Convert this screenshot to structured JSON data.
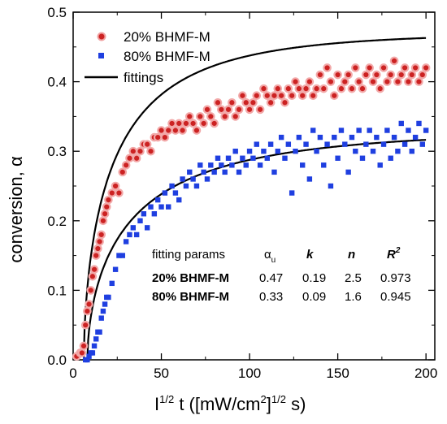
{
  "chart_data": {
    "type": "scatter",
    "xlabel": "I",
    "xlabel_sup": "1/2",
    "xlabel_rest": " t ([mW/cm",
    "xlabel_sup2": "2",
    "xlabel_tail": "]",
    "xlabel_sup3": "1/2",
    "xlabel_end": " s)",
    "ylabel": "conversion, α",
    "xlim": [
      0,
      205
    ],
    "ylim": [
      0,
      0.5
    ],
    "xticks": [
      "0",
      "50",
      "100",
      "150",
      "200"
    ],
    "yticks": [
      "0.0",
      "0.1",
      "0.2",
      "0.3",
      "0.4",
      "0.5"
    ],
    "legend": [
      {
        "label": "20% BHMF-M",
        "color": "#cc2222",
        "marker": "circle"
      },
      {
        "label": "80% BHMF-M",
        "color": "#1f3fe0",
        "marker": "square"
      },
      {
        "label": "fittings",
        "color": "#000000",
        "marker": "line"
      }
    ],
    "series": [
      {
        "name": "20% BHMF-M",
        "color": "#cc2222",
        "marker": "circle",
        "x": [
          2,
          4,
          5,
          6,
          7,
          8,
          9,
          10,
          11,
          12,
          13,
          14,
          15,
          16,
          17,
          18,
          19,
          20,
          22,
          24,
          26,
          28,
          30,
          32,
          34,
          36,
          38,
          40,
          42,
          44,
          46,
          48,
          50,
          52,
          54,
          56,
          58,
          60,
          62,
          64,
          66,
          68,
          70,
          72,
          74,
          76,
          78,
          80,
          82,
          84,
          86,
          88,
          90,
          92,
          94,
          96,
          98,
          100,
          102,
          104,
          106,
          108,
          110,
          112,
          114,
          116,
          118,
          120,
          122,
          124,
          126,
          128,
          130,
          132,
          134,
          136,
          138,
          140,
          142,
          144,
          146,
          148,
          150,
          152,
          154,
          156,
          158,
          160,
          162,
          164,
          166,
          168,
          170,
          172,
          174,
          176,
          178,
          180,
          182,
          184,
          186,
          188,
          190,
          192,
          194,
          196,
          198,
          200
        ],
        "y": [
          0.005,
          0.01,
          0.01,
          0.02,
          0.05,
          0.07,
          0.08,
          0.1,
          0.12,
          0.13,
          0.15,
          0.16,
          0.17,
          0.18,
          0.2,
          0.21,
          0.22,
          0.23,
          0.24,
          0.25,
          0.24,
          0.27,
          0.28,
          0.29,
          0.3,
          0.29,
          0.3,
          0.31,
          0.31,
          0.3,
          0.32,
          0.32,
          0.33,
          0.32,
          0.33,
          0.34,
          0.33,
          0.34,
          0.33,
          0.34,
          0.35,
          0.34,
          0.33,
          0.35,
          0.34,
          0.36,
          0.35,
          0.34,
          0.37,
          0.36,
          0.35,
          0.36,
          0.37,
          0.35,
          0.36,
          0.38,
          0.37,
          0.36,
          0.37,
          0.38,
          0.36,
          0.39,
          0.38,
          0.37,
          0.38,
          0.39,
          0.38,
          0.37,
          0.39,
          0.38,
          0.4,
          0.39,
          0.38,
          0.39,
          0.4,
          0.38,
          0.39,
          0.41,
          0.39,
          0.42,
          0.4,
          0.38,
          0.41,
          0.39,
          0.4,
          0.41,
          0.39,
          0.42,
          0.4,
          0.39,
          0.41,
          0.42,
          0.4,
          0.41,
          0.39,
          0.42,
          0.4,
          0.41,
          0.43,
          0.4,
          0.41,
          0.42,
          0.4,
          0.41,
          0.42,
          0.4,
          0.41,
          0.42
        ]
      },
      {
        "name": "80% BHMF-M",
        "color": "#1f3fe0",
        "marker": "square",
        "x": [
          7,
          8,
          9,
          10,
          11,
          12,
          13,
          14,
          15,
          16,
          17,
          18,
          19,
          20,
          22,
          24,
          26,
          28,
          30,
          32,
          34,
          36,
          38,
          40,
          42,
          44,
          46,
          48,
          50,
          52,
          54,
          56,
          58,
          60,
          62,
          64,
          66,
          68,
          70,
          72,
          74,
          76,
          78,
          80,
          82,
          84,
          86,
          88,
          90,
          92,
          94,
          96,
          98,
          100,
          102,
          104,
          106,
          108,
          110,
          112,
          114,
          116,
          118,
          120,
          122,
          124,
          126,
          128,
          130,
          132,
          134,
          136,
          138,
          140,
          142,
          144,
          146,
          148,
          150,
          152,
          154,
          156,
          158,
          160,
          162,
          164,
          166,
          168,
          170,
          172,
          174,
          176,
          178,
          180,
          182,
          184,
          186,
          188,
          190,
          192,
          194,
          196,
          198,
          200
        ],
        "y": [
          0.0,
          0.0,
          0.005,
          0.01,
          0.01,
          0.02,
          0.03,
          0.04,
          0.04,
          0.06,
          0.07,
          0.08,
          0.09,
          0.09,
          0.11,
          0.13,
          0.15,
          0.15,
          0.17,
          0.18,
          0.19,
          0.18,
          0.2,
          0.21,
          0.19,
          0.22,
          0.21,
          0.23,
          0.22,
          0.24,
          0.22,
          0.25,
          0.24,
          0.23,
          0.26,
          0.25,
          0.27,
          0.26,
          0.25,
          0.28,
          0.27,
          0.26,
          0.28,
          0.27,
          0.29,
          0.28,
          0.27,
          0.29,
          0.28,
          0.3,
          0.27,
          0.29,
          0.28,
          0.3,
          0.29,
          0.31,
          0.28,
          0.3,
          0.29,
          0.31,
          0.27,
          0.3,
          0.32,
          0.29,
          0.31,
          0.24,
          0.3,
          0.32,
          0.28,
          0.31,
          0.26,
          0.33,
          0.3,
          0.32,
          0.28,
          0.31,
          0.25,
          0.32,
          0.29,
          0.33,
          0.31,
          0.27,
          0.32,
          0.3,
          0.33,
          0.29,
          0.31,
          0.33,
          0.3,
          0.32,
          0.28,
          0.31,
          0.33,
          0.29,
          0.32,
          0.3,
          0.34,
          0.31,
          0.33,
          0.3,
          0.32,
          0.34,
          0.31,
          0.33
        ]
      }
    ],
    "fits": [
      {
        "name": "20% BHMF-M fit",
        "alpha_u": 0.47,
        "k": 0.19,
        "n": 2.5,
        "x0": 6,
        "color": "#000000"
      },
      {
        "name": "80% BHMF-M fit",
        "alpha_u": 0.33,
        "k": 0.09,
        "n": 1.6,
        "x0": 8,
        "color": "#000000"
      }
    ],
    "annotation_table": {
      "header": [
        "fitting params",
        "α",
        "u",
        "k",
        "n",
        "R",
        "2"
      ],
      "rows": [
        [
          "20% BHMF-M",
          "0.47",
          "0.19",
          "2.5",
          "0.973"
        ],
        [
          "80% BHMF-M",
          "0.33",
          "0.09",
          "1.6",
          "0.945"
        ]
      ]
    }
  }
}
